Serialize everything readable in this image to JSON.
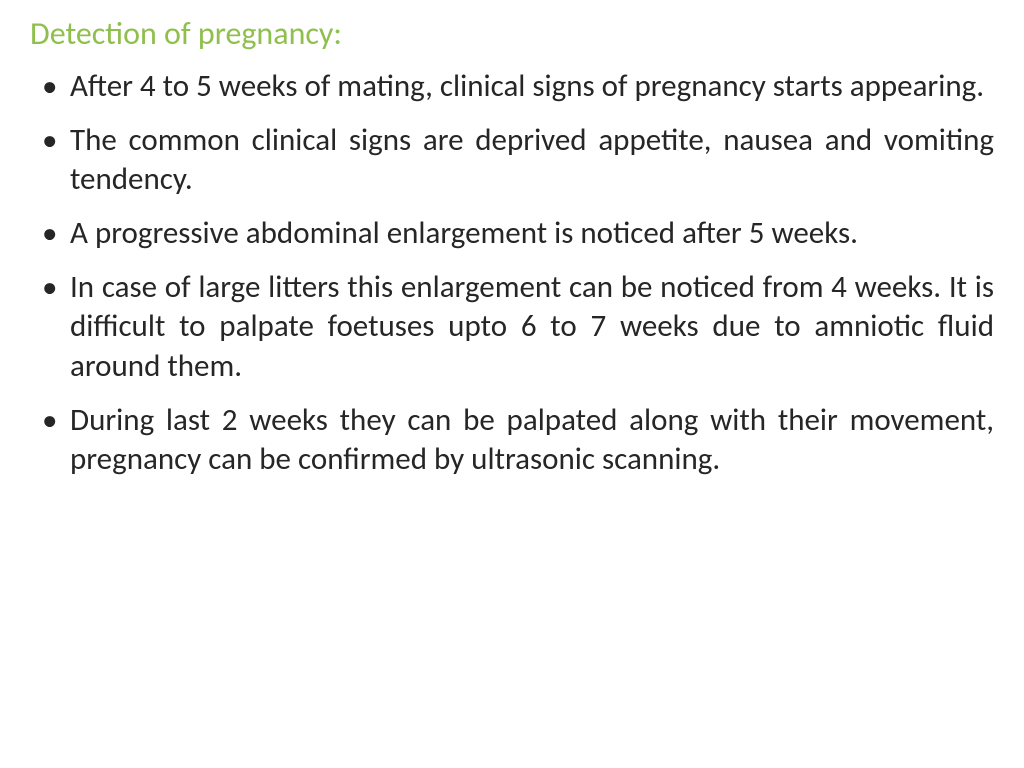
{
  "title": {
    "text": "Detection of pregnancy:",
    "color": "#8fbf4d",
    "fontsize": 32
  },
  "body": {
    "color": "#262626",
    "fontsize": 31
  },
  "bullets": [
    "After 4 to 5 weeks of mating, clinical signs of pregnancy starts appearing.",
    "The common clinical signs are deprived appetite, nausea and vomiting tendency.",
    "A progressive abdominal enlargement is noticed after 5 weeks.",
    "In case of large litters this enlargement can be noticed from 4 weeks. It is difficult to palpate foetuses upto 6 to 7 weeks due to amniotic fluid around them.",
    "During last 2 weeks they can be palpated along with their movement, pregnancy can be confirmed by ultrasonic scanning."
  ]
}
